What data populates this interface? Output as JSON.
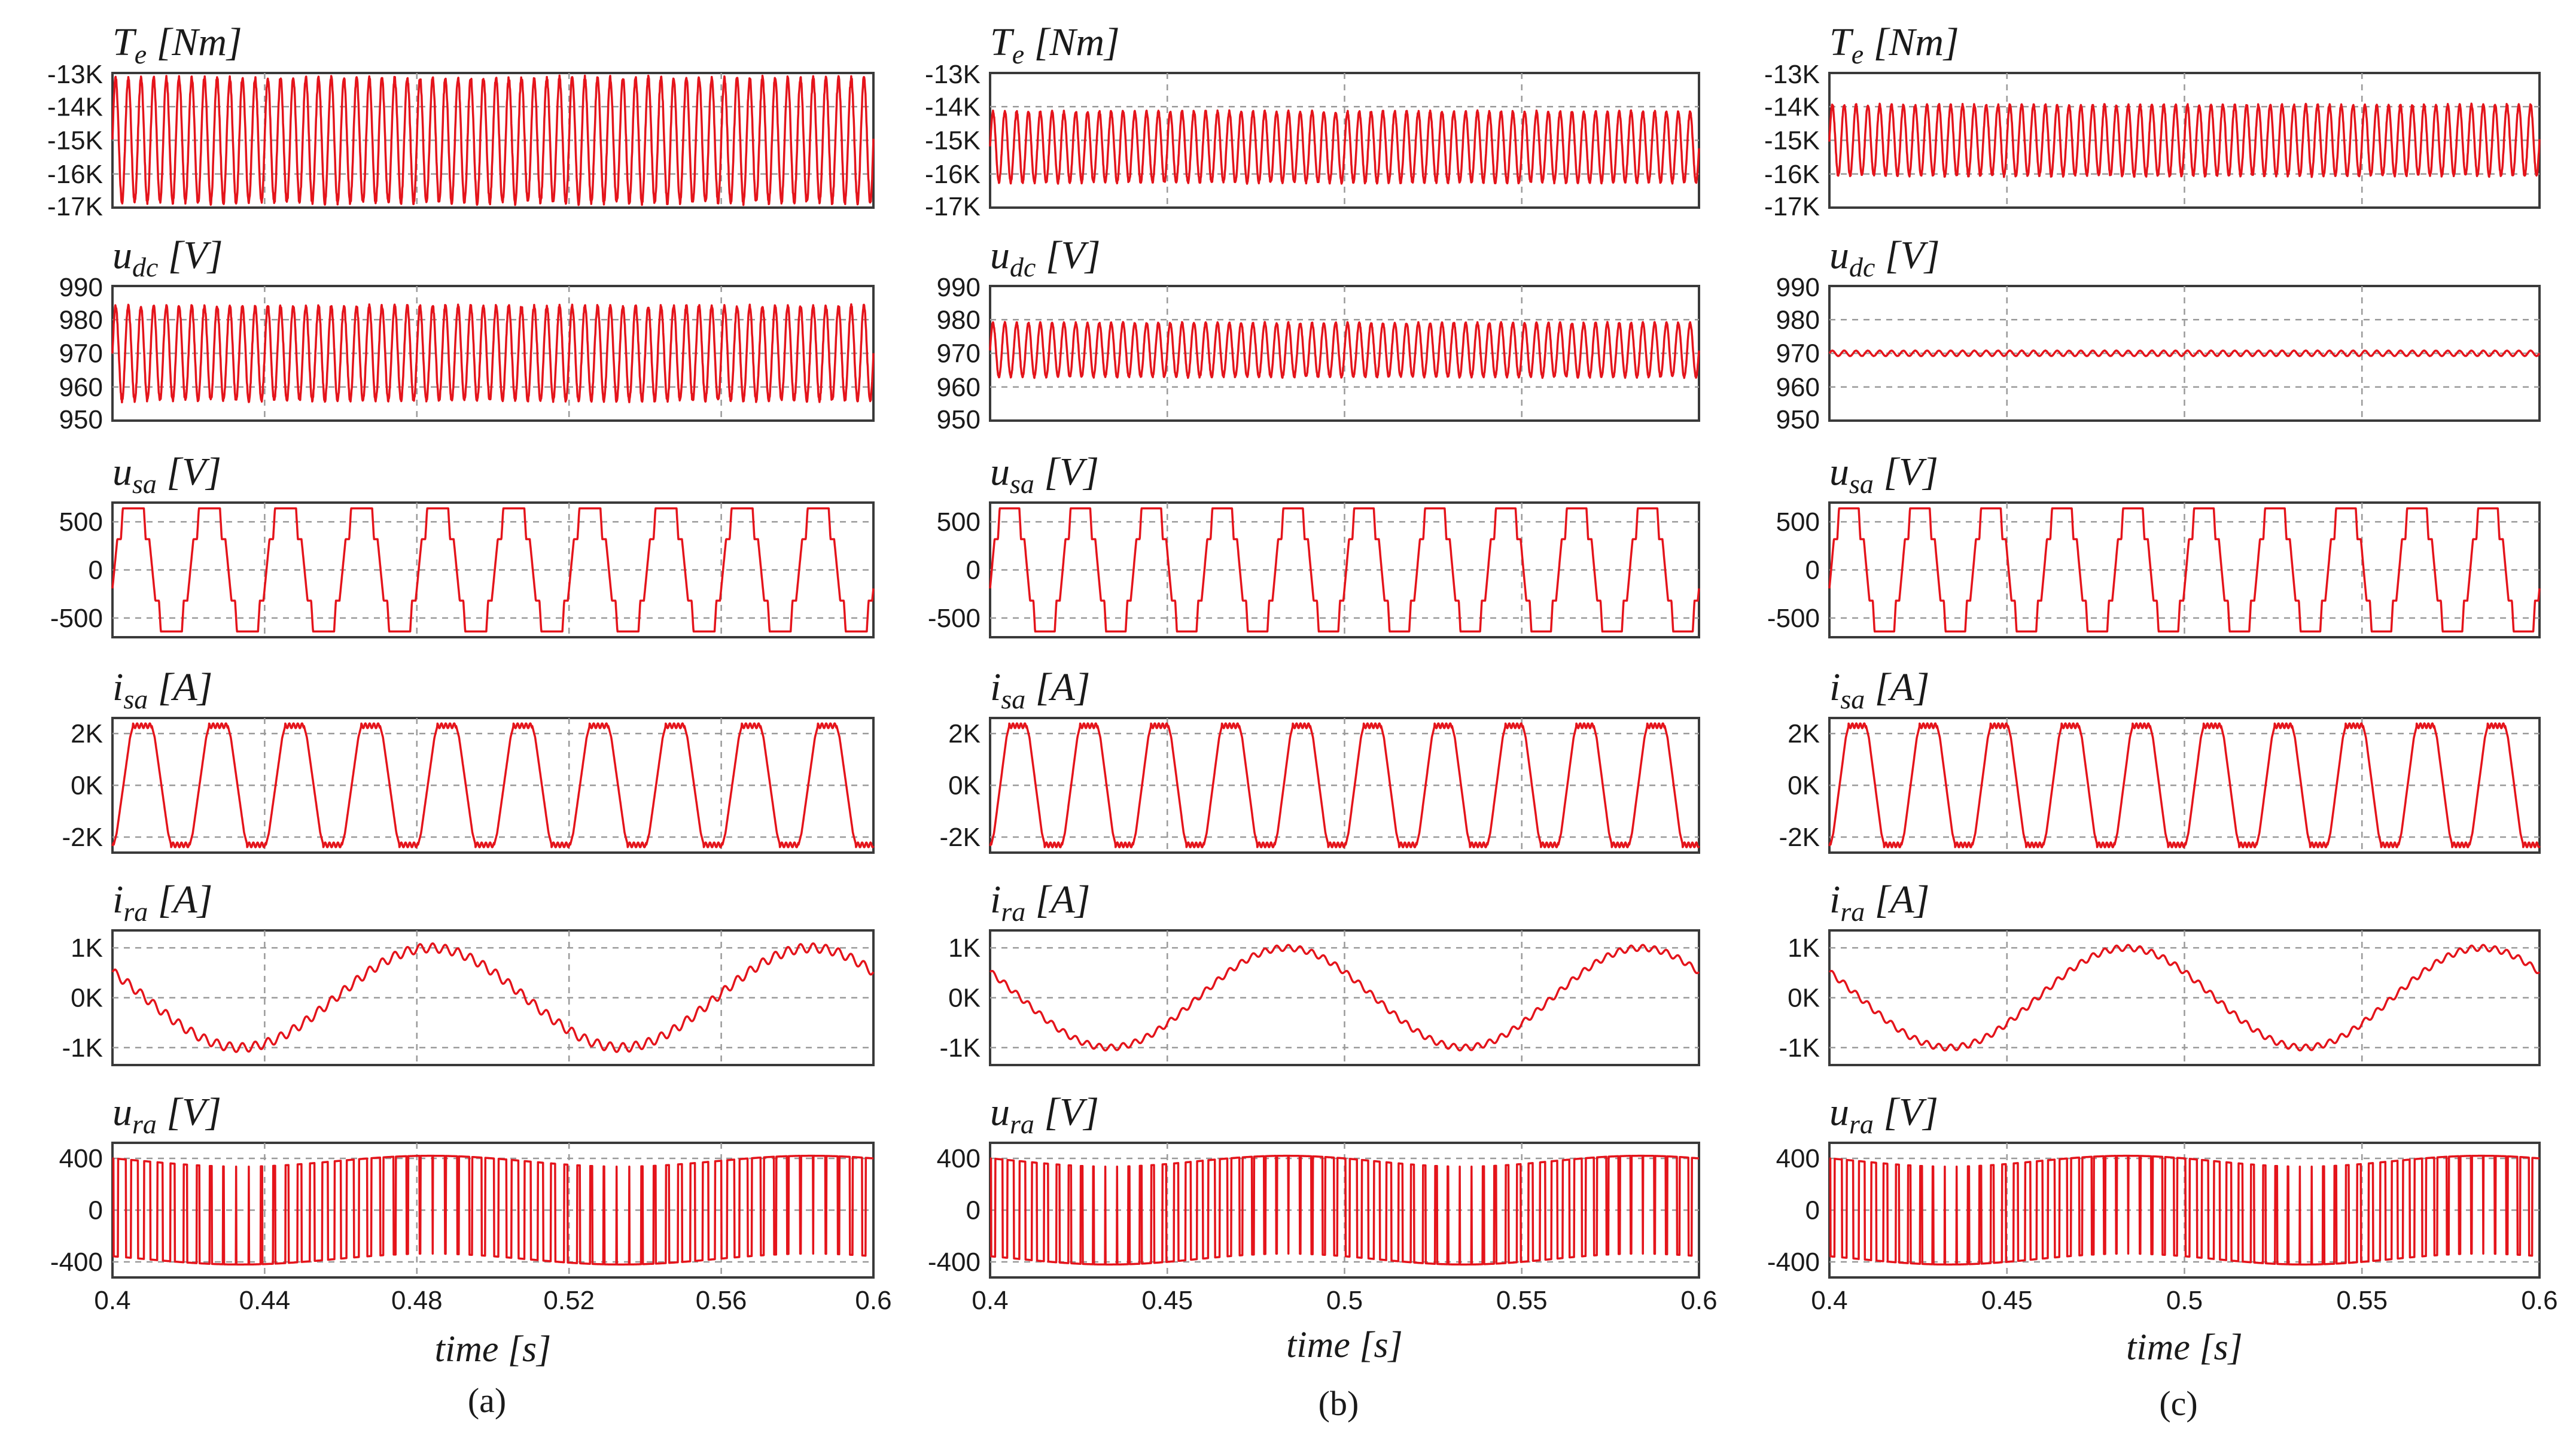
{
  "chart_data": [
    {
      "type": "line",
      "caption": "(a)",
      "xlabel": "time [s]",
      "xlim": [
        0.4,
        0.6
      ],
      "xticks": [
        "0.4",
        "0.44",
        "0.48",
        "0.52",
        "0.56",
        "0.6"
      ],
      "xtick_values": [
        0.4,
        0.44,
        0.48,
        0.52,
        0.56,
        0.6
      ],
      "subplots": [
        {
          "label": {
            "main": "T",
            "sub": "e",
            "unit": " [Nm]"
          },
          "wave": "ripple",
          "mean": -15000,
          "ripple_amp": 1850,
          "ripple_hz": 300,
          "ylim": [
            -17000,
            -13000
          ],
          "yticks": [
            "-13K",
            "-14K",
            "-15K",
            "-16K",
            "-17K"
          ],
          "ytick_values": [
            -13000,
            -14000,
            -15000,
            -16000,
            -17000
          ]
        },
        {
          "label": {
            "main": "u",
            "sub": "dc",
            "unit": " [V]"
          },
          "wave": "ripple",
          "mean": 970,
          "ripple_amp": 14,
          "ripple_hz": 300,
          "ylim": [
            950,
            990
          ],
          "yticks": [
            "990",
            "980",
            "970",
            "960",
            "950"
          ],
          "ytick_values": [
            990,
            980,
            970,
            960,
            950
          ]
        },
        {
          "label": {
            "main": "u",
            "sub": "sa",
            "unit": " [V]"
          },
          "wave": "stepped",
          "amplitude": 640,
          "freq_hz": 50,
          "ylim": [
            -700,
            700
          ],
          "yticks": [
            "500",
            "0",
            "-500"
          ],
          "ytick_values": [
            500,
            0,
            -500
          ]
        },
        {
          "label": {
            "main": "i",
            "sub": "sa",
            "unit": " [A]"
          },
          "wave": "trapezoid",
          "amplitude": 2300,
          "freq_hz": 50,
          "ylim": [
            -2600,
            2600
          ],
          "yticks": [
            "2K",
            "0K",
            "-2K"
          ],
          "ytick_values": [
            2000,
            0,
            -2000
          ]
        },
        {
          "label": {
            "main": "i",
            "sub": "ra",
            "unit": " [A]"
          },
          "wave": "sine",
          "amplitude": 1000,
          "freq_hz": 10,
          "ripple_amp": 90,
          "ripple_hz": 300,
          "ylim": [
            -1350,
            1350
          ],
          "yticks": [
            "1K",
            "0K",
            "-1K"
          ],
          "ytick_values": [
            1000,
            0,
            -1000
          ]
        },
        {
          "label": {
            "main": "u",
            "sub": "ra",
            "unit": " [V]"
          },
          "wave": "pwm",
          "amplitude": 420,
          "freq_hz": 10,
          "ylim": [
            -520,
            520
          ],
          "yticks": [
            "400",
            "0",
            "-400"
          ],
          "ytick_values": [
            400,
            0,
            -400
          ]
        }
      ]
    },
    {
      "type": "line",
      "caption": "(b)",
      "xlabel": "time [s]",
      "xlim": [
        0.4,
        0.6
      ],
      "xticks": [
        "0.4",
        "0.45",
        "0.5",
        "0.55",
        "0.6"
      ],
      "xtick_values": [
        0.4,
        0.45,
        0.5,
        0.55,
        0.6
      ],
      "subplots": [
        {
          "label": {
            "main": "T",
            "sub": "e",
            "unit": " [Nm]"
          },
          "wave": "ripple",
          "mean": -15200,
          "ripple_amp": 1050,
          "ripple_hz": 300,
          "ylim": [
            -17000,
            -13000
          ],
          "yticks": [
            "-13K",
            "-14K",
            "-15K",
            "-16K",
            "-17K"
          ],
          "ytick_values": [
            -13000,
            -14000,
            -15000,
            -16000,
            -17000
          ]
        },
        {
          "label": {
            "main": "u",
            "sub": "dc",
            "unit": " [V]"
          },
          "wave": "ripple",
          "mean": 971,
          "ripple_amp": 8,
          "ripple_hz": 300,
          "ylim": [
            950,
            990
          ],
          "yticks": [
            "990",
            "980",
            "970",
            "960",
            "950"
          ],
          "ytick_values": [
            990,
            980,
            970,
            960,
            950
          ]
        },
        {
          "label": {
            "main": "u",
            "sub": "sa",
            "unit": " [V]"
          },
          "wave": "stepped",
          "amplitude": 640,
          "freq_hz": 50,
          "ylim": [
            -700,
            700
          ],
          "yticks": [
            "500",
            "0",
            "-500"
          ],
          "ytick_values": [
            500,
            0,
            -500
          ]
        },
        {
          "label": {
            "main": "i",
            "sub": "sa",
            "unit": " [A]"
          },
          "wave": "trapezoid",
          "amplitude": 2300,
          "freq_hz": 50,
          "ylim": [
            -2600,
            2600
          ],
          "yticks": [
            "2K",
            "0K",
            "-2K"
          ],
          "ytick_values": [
            2000,
            0,
            -2000
          ]
        },
        {
          "label": {
            "main": "i",
            "sub": "ra",
            "unit": " [A]"
          },
          "wave": "sine",
          "amplitude": 1000,
          "freq_hz": 10,
          "ripple_amp": 60,
          "ripple_hz": 300,
          "ylim": [
            -1350,
            1350
          ],
          "yticks": [
            "1K",
            "0K",
            "-1K"
          ],
          "ytick_values": [
            1000,
            0,
            -1000
          ]
        },
        {
          "label": {
            "main": "u",
            "sub": "ra",
            "unit": " [V]"
          },
          "wave": "pwm",
          "amplitude": 420,
          "freq_hz": 10,
          "ylim": [
            -520,
            520
          ],
          "yticks": [
            "400",
            "0",
            "-400"
          ],
          "ytick_values": [
            400,
            0,
            -400
          ]
        }
      ]
    },
    {
      "type": "line",
      "caption": "(c)",
      "xlabel": "time [s]",
      "xlim": [
        0.4,
        0.6
      ],
      "xticks": [
        "0.4",
        "0.45",
        "0.5",
        "0.55",
        "0.6"
      ],
      "xtick_values": [
        0.4,
        0.45,
        0.5,
        0.55,
        0.6
      ],
      "subplots": [
        {
          "label": {
            "main": "T",
            "sub": "e",
            "unit": " [Nm]"
          },
          "wave": "ripple",
          "mean": -15000,
          "ripple_amp": 1050,
          "ripple_hz": 300,
          "ylim": [
            -17000,
            -13000
          ],
          "yticks": [
            "-13K",
            "-14K",
            "-15K",
            "-16K",
            "-17K"
          ],
          "ytick_values": [
            -13000,
            -14000,
            -15000,
            -16000,
            -17000
          ]
        },
        {
          "label": {
            "main": "u",
            "sub": "dc",
            "unit": " [V]"
          },
          "wave": "ripple",
          "mean": 970,
          "ripple_amp": 0.8,
          "ripple_hz": 300,
          "ylim": [
            950,
            990
          ],
          "yticks": [
            "990",
            "980",
            "970",
            "960",
            "950"
          ],
          "ytick_values": [
            990,
            980,
            970,
            960,
            950
          ]
        },
        {
          "label": {
            "main": "u",
            "sub": "sa",
            "unit": " [V]"
          },
          "wave": "stepped",
          "amplitude": 640,
          "freq_hz": 50,
          "ylim": [
            -700,
            700
          ],
          "yticks": [
            "500",
            "0",
            "-500"
          ],
          "ytick_values": [
            500,
            0,
            -500
          ]
        },
        {
          "label": {
            "main": "i",
            "sub": "sa",
            "unit": " [A]"
          },
          "wave": "trapezoid",
          "amplitude": 2300,
          "freq_hz": 50,
          "ylim": [
            -2600,
            2600
          ],
          "yticks": [
            "2K",
            "0K",
            "-2K"
          ],
          "ytick_values": [
            2000,
            0,
            -2000
          ]
        },
        {
          "label": {
            "main": "i",
            "sub": "ra",
            "unit": " [A]"
          },
          "wave": "sine",
          "amplitude": 1000,
          "freq_hz": 10,
          "ripple_amp": 60,
          "ripple_hz": 300,
          "ylim": [
            -1350,
            1350
          ],
          "yticks": [
            "1K",
            "0K",
            "-1K"
          ],
          "ytick_values": [
            1000,
            0,
            -1000
          ]
        },
        {
          "label": {
            "main": "u",
            "sub": "ra",
            "unit": " [V]"
          },
          "wave": "pwm",
          "amplitude": 420,
          "freq_hz": 10,
          "ylim": [
            -520,
            520
          ],
          "yticks": [
            "400",
            "0",
            "-400"
          ],
          "ytick_values": [
            400,
            0,
            -400
          ]
        }
      ]
    }
  ],
  "colors": {
    "trace": "#e4141b",
    "grid": "#9a9a9a",
    "frame": "#3a3a3a"
  }
}
